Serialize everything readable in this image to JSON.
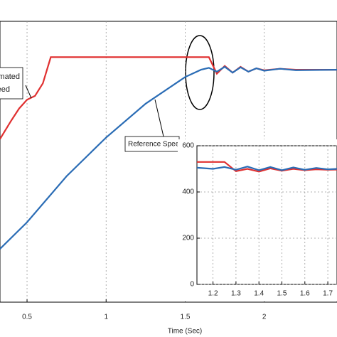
{
  "chart_data": [
    {
      "type": "line",
      "xlabel": "Time (Sec)",
      "xlim": [
        0.329,
        2.46
      ],
      "xticks": [
        0.5,
        1,
        1.5,
        2
      ],
      "ylim": [
        20,
        600
      ],
      "yticks": [],
      "grid": true,
      "annotations": [
        "Reference Speed",
        "Estimated",
        "Speed"
      ],
      "series": [
        {
          "name": "Estimated Speed",
          "color": "#e03030",
          "x": [
            0.329,
            0.4,
            0.45,
            0.5,
            0.55,
            0.6,
            0.65,
            1.65,
            1.7,
            1.75,
            1.8,
            1.85,
            1.9,
            1.95,
            2.0,
            2.1,
            2.2,
            2.46
          ],
          "values": [
            357,
            395,
            420,
            438,
            446,
            472,
            526,
            526,
            492,
            508,
            494,
            506,
            496,
            503,
            499,
            502,
            500,
            500
          ]
        },
        {
          "name": "Reference Speed",
          "color": "#2a6cb5",
          "x": [
            0.329,
            0.5,
            0.75,
            1.0,
            1.25,
            1.5,
            1.6,
            1.65,
            1.7,
            1.75,
            1.8,
            1.85,
            1.9,
            1.95,
            2.0,
            2.1,
            2.2,
            2.46
          ],
          "values": [
            130,
            185,
            280,
            360,
            430,
            485,
            500,
            504,
            496,
            506,
            494,
            505,
            496,
            503,
            498,
            502,
            499,
            500
          ]
        }
      ]
    },
    {
      "type": "line",
      "xlim": [
        1.13,
        1.74
      ],
      "xticks": [
        1.2,
        1.3,
        1.4,
        1.5,
        1.6,
        1.7
      ],
      "ylim": [
        0,
        600
      ],
      "yticks": [
        0,
        200,
        400,
        600
      ],
      "grid": true,
      "series": [
        {
          "name": "Estimated Speed",
          "color": "#e03030",
          "x": [
            1.13,
            1.25,
            1.3,
            1.35,
            1.4,
            1.45,
            1.5,
            1.55,
            1.6,
            1.65,
            1.7,
            1.74
          ],
          "values": [
            530,
            530,
            490,
            500,
            488,
            502,
            492,
            500,
            494,
            498,
            496,
            497
          ]
        },
        {
          "name": "Reference Speed",
          "color": "#2a6cb5",
          "x": [
            1.13,
            1.2,
            1.25,
            1.3,
            1.35,
            1.4,
            1.45,
            1.5,
            1.55,
            1.6,
            1.65,
            1.7,
            1.74
          ],
          "values": [
            505,
            500,
            508,
            496,
            510,
            494,
            508,
            494,
            506,
            496,
            504,
            498,
            500
          ]
        }
      ]
    }
  ]
}
